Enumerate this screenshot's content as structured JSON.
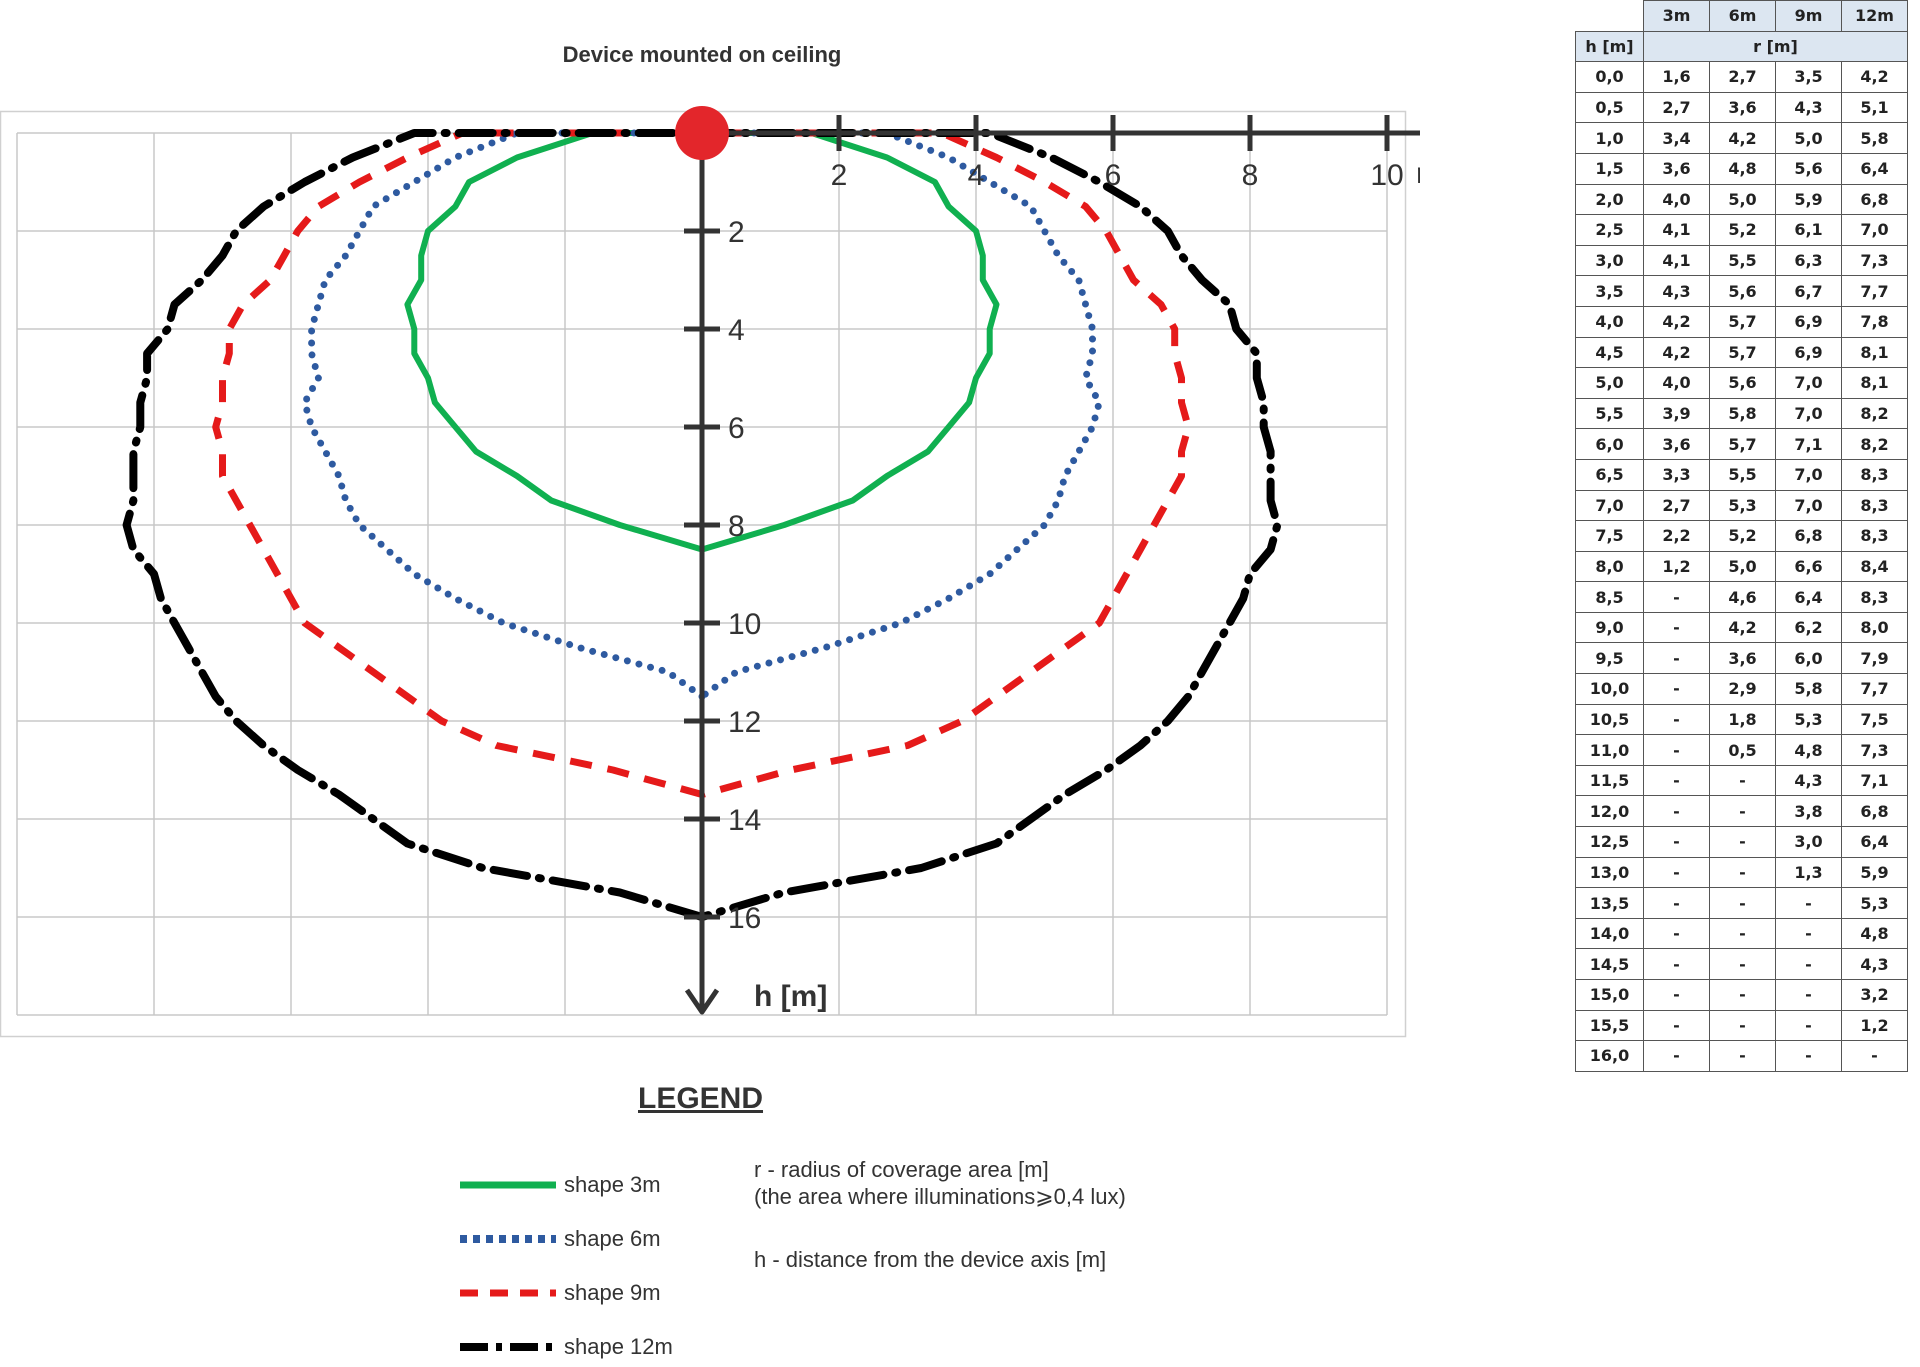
{
  "chart_data": {
    "type": "line",
    "title": "Device mounted on ceiling",
    "xlabel": "r [m]",
    "ylabel": "h [m]",
    "x_ticks": [
      "2",
      "4",
      "6",
      "8",
      "10"
    ],
    "y_ticks": [
      "2",
      "4",
      "6",
      "8",
      "10",
      "12",
      "14",
      "16"
    ],
    "xlim": [
      -10,
      10
    ],
    "ylim": [
      0,
      18
    ],
    "grid": true,
    "series": [
      {
        "name": "shape 3m",
        "color": "#10b050",
        "style": "solid",
        "h": [
          0,
          0.5,
          1,
          1.5,
          2,
          2.5,
          3,
          3.5,
          4,
          4.5,
          5,
          5.5,
          6,
          6.5,
          7,
          7.5,
          8,
          8.5
        ],
        "r": [
          1.6,
          2.7,
          3.4,
          3.6,
          4.0,
          4.1,
          4.1,
          4.3,
          4.2,
          4.2,
          4.0,
          3.9,
          3.6,
          3.3,
          2.7,
          2.2,
          1.2,
          0
        ]
      },
      {
        "name": "shape 6m",
        "color": "#2e5aa0",
        "style": "dotted",
        "h": [
          0,
          0.5,
          1,
          1.5,
          2,
          2.5,
          3,
          3.5,
          4,
          4.5,
          5,
          5.5,
          6,
          6.5,
          7,
          7.5,
          8,
          8.5,
          9,
          9.5,
          10,
          10.5,
          11,
          11.5
        ],
        "r": [
          2.7,
          3.6,
          4.2,
          4.8,
          5.0,
          5.2,
          5.5,
          5.6,
          5.7,
          5.7,
          5.6,
          5.8,
          5.7,
          5.5,
          5.3,
          5.2,
          5.0,
          4.6,
          4.2,
          3.6,
          2.9,
          1.8,
          0.5,
          0
        ]
      },
      {
        "name": "shape 9m",
        "color": "#e51a1a",
        "style": "dashed",
        "h": [
          0,
          0.5,
          1,
          1.5,
          2,
          2.5,
          3,
          3.5,
          4,
          4.5,
          5,
          5.5,
          6,
          6.5,
          7,
          7.5,
          8,
          8.5,
          9,
          9.5,
          10,
          10.5,
          11,
          11.5,
          12,
          12.5,
          13,
          13.5
        ],
        "r": [
          3.5,
          4.3,
          5.0,
          5.6,
          5.9,
          6.1,
          6.3,
          6.7,
          6.9,
          6.9,
          7.0,
          7.0,
          7.1,
          7.0,
          7.0,
          6.8,
          6.6,
          6.4,
          6.2,
          6.0,
          5.8,
          5.3,
          4.8,
          4.3,
          3.8,
          3.0,
          1.3,
          0
        ]
      },
      {
        "name": "shape 12m",
        "color": "#000000",
        "style": "dashdot",
        "h": [
          0,
          0.5,
          1,
          1.5,
          2,
          2.5,
          3,
          3.5,
          4,
          4.5,
          5,
          5.5,
          6,
          6.5,
          7,
          7.5,
          8,
          8.5,
          9,
          9.5,
          10,
          10.5,
          11,
          11.5,
          12,
          12.5,
          13,
          13.5,
          14,
          14.5,
          15,
          15.5,
          16
        ],
        "r": [
          4.2,
          5.1,
          5.8,
          6.4,
          6.8,
          7.0,
          7.3,
          7.7,
          7.8,
          8.1,
          8.1,
          8.2,
          8.2,
          8.3,
          8.3,
          8.3,
          8.4,
          8.3,
          8.0,
          7.9,
          7.7,
          7.5,
          7.3,
          7.1,
          6.8,
          6.4,
          5.9,
          5.3,
          4.8,
          4.3,
          3.2,
          1.2,
          0
        ]
      }
    ]
  },
  "legend": {
    "title": "LEGEND",
    "items": [
      "shape 3m",
      "shape 6m",
      "shape 9m",
      "shape 12m"
    ],
    "note_r_1": "r - radius of coverage area [m]",
    "note_r_2": "(the area where illuminations⩾0,4 lux)",
    "note_h": "h - distance from the device axis [m]"
  },
  "table": {
    "col_headers": [
      "3m",
      "6m",
      "9m",
      "12m"
    ],
    "row_header_label": "h [m]",
    "group_label": "r [m]",
    "rows": [
      [
        "0,0",
        "1,6",
        "2,7",
        "3,5",
        "4,2"
      ],
      [
        "0,5",
        "2,7",
        "3,6",
        "4,3",
        "5,1"
      ],
      [
        "1,0",
        "3,4",
        "4,2",
        "5,0",
        "5,8"
      ],
      [
        "1,5",
        "3,6",
        "4,8",
        "5,6",
        "6,4"
      ],
      [
        "2,0",
        "4,0",
        "5,0",
        "5,9",
        "6,8"
      ],
      [
        "2,5",
        "4,1",
        "5,2",
        "6,1",
        "7,0"
      ],
      [
        "3,0",
        "4,1",
        "5,5",
        "6,3",
        "7,3"
      ],
      [
        "3,5",
        "4,3",
        "5,6",
        "6,7",
        "7,7"
      ],
      [
        "4,0",
        "4,2",
        "5,7",
        "6,9",
        "7,8"
      ],
      [
        "4,5",
        "4,2",
        "5,7",
        "6,9",
        "8,1"
      ],
      [
        "5,0",
        "4,0",
        "5,6",
        "7,0",
        "8,1"
      ],
      [
        "5,5",
        "3,9",
        "5,8",
        "7,0",
        "8,2"
      ],
      [
        "6,0",
        "3,6",
        "5,7",
        "7,1",
        "8,2"
      ],
      [
        "6,5",
        "3,3",
        "5,5",
        "7,0",
        "8,3"
      ],
      [
        "7,0",
        "2,7",
        "5,3",
        "7,0",
        "8,3"
      ],
      [
        "7,5",
        "2,2",
        "5,2",
        "6,8",
        "8,3"
      ],
      [
        "8,0",
        "1,2",
        "5,0",
        "6,6",
        "8,4"
      ],
      [
        "8,5",
        "-",
        "4,6",
        "6,4",
        "8,3"
      ],
      [
        "9,0",
        "-",
        "4,2",
        "6,2",
        "8,0"
      ],
      [
        "9,5",
        "-",
        "3,6",
        "6,0",
        "7,9"
      ],
      [
        "10,0",
        "-",
        "2,9",
        "5,8",
        "7,7"
      ],
      [
        "10,5",
        "-",
        "1,8",
        "5,3",
        "7,5"
      ],
      [
        "11,0",
        "-",
        "0,5",
        "4,8",
        "7,3"
      ],
      [
        "11,5",
        "-",
        "-",
        "4,3",
        "7,1"
      ],
      [
        "12,0",
        "-",
        "-",
        "3,8",
        "6,8"
      ],
      [
        "12,5",
        "-",
        "-",
        "3,0",
        "6,4"
      ],
      [
        "13,0",
        "-",
        "-",
        "1,3",
        "5,9"
      ],
      [
        "13,5",
        "-",
        "-",
        "-",
        "5,3"
      ],
      [
        "14,0",
        "-",
        "-",
        "-",
        "4,8"
      ],
      [
        "14,5",
        "-",
        "-",
        "-",
        "4,3"
      ],
      [
        "15,0",
        "-",
        "-",
        "-",
        "3,2"
      ],
      [
        "15,5",
        "-",
        "-",
        "-",
        "1,2"
      ],
      [
        "16,0",
        "-",
        "-",
        "-",
        "-"
      ]
    ]
  }
}
